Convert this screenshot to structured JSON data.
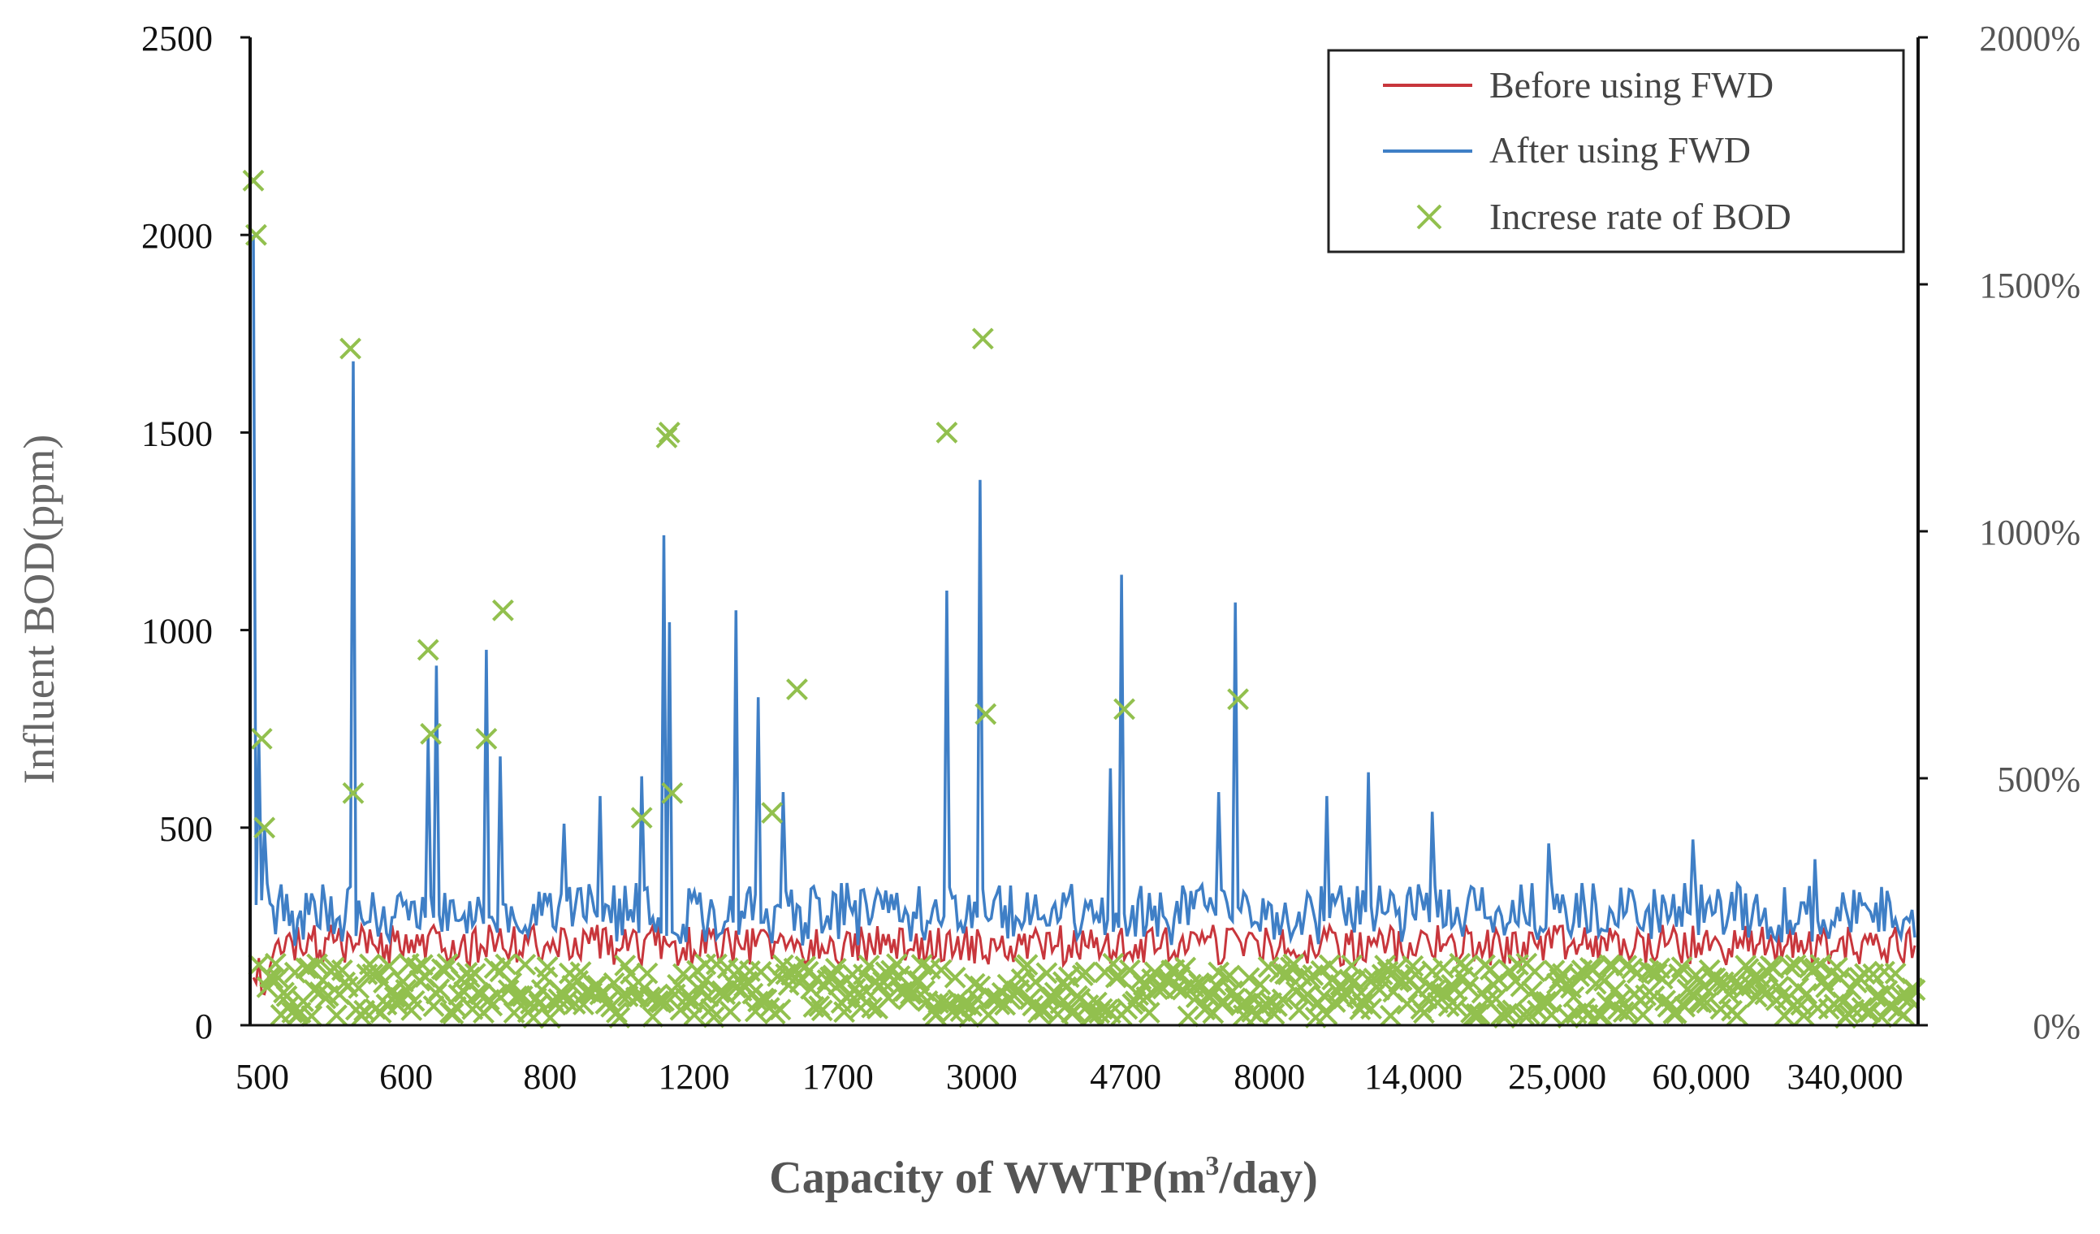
{
  "chart_data": {
    "type": "line",
    "title": "",
    "xlabel_main": "Capacity of WWTP(m",
    "xlabel_sup": "3",
    "xlabel_tail": "/day)",
    "ylabel": "Influent BOD(ppm)",
    "ylim": [
      0,
      2500
    ],
    "y2lim": [
      0,
      2000
    ],
    "yticks": [
      "0",
      "500",
      "1000",
      "1500",
      "2000",
      "2500"
    ],
    "y2ticks": [
      "0%",
      "500%",
      "1000%",
      "1500%",
      "2000%"
    ],
    "x_tick_labels": [
      "500",
      "600",
      "800",
      "1200",
      "1700",
      "3000",
      "4700",
      "8000",
      "14,000",
      "25,000",
      "60,000",
      "340,000"
    ],
    "n_points": 600,
    "legend_position": "top-right",
    "legend": {
      "before": "Before using FWD",
      "after": "After using FWD",
      "rate": "Increse rate of BOD"
    },
    "colors": {
      "before": "#c8363c",
      "after": "#3f7fc6",
      "rate": "#92c04e",
      "axis": "#111111"
    },
    "series": [
      {
        "name": "Before using FWD",
        "axis": "left",
        "baseline_range": [
          150,
          280
        ],
        "typical_value": 190
      },
      {
        "name": "After using FWD",
        "axis": "left",
        "baseline_range": [
          200,
          360
        ],
        "typical_value": 260,
        "peaks": [
          {
            "index": 0,
            "value": 2000
          },
          {
            "index": 2,
            "value": 720
          },
          {
            "index": 4,
            "value": 500
          },
          {
            "index": 36,
            "value": 1680
          },
          {
            "index": 63,
            "value": 730
          },
          {
            "index": 66,
            "value": 910
          },
          {
            "index": 84,
            "value": 950
          },
          {
            "index": 89,
            "value": 680
          },
          {
            "index": 112,
            "value": 510
          },
          {
            "index": 125,
            "value": 580
          },
          {
            "index": 140,
            "value": 630
          },
          {
            "index": 148,
            "value": 1240
          },
          {
            "index": 150,
            "value": 1020
          },
          {
            "index": 174,
            "value": 1050
          },
          {
            "index": 182,
            "value": 830
          },
          {
            "index": 191,
            "value": 590
          },
          {
            "index": 250,
            "value": 1100
          },
          {
            "index": 262,
            "value": 1380
          },
          {
            "index": 309,
            "value": 650
          },
          {
            "index": 313,
            "value": 1140
          },
          {
            "index": 348,
            "value": 590
          },
          {
            "index": 354,
            "value": 1070
          },
          {
            "index": 387,
            "value": 580
          },
          {
            "index": 402,
            "value": 640
          },
          {
            "index": 425,
            "value": 540
          },
          {
            "index": 467,
            "value": 460
          },
          {
            "index": 519,
            "value": 470
          },
          {
            "index": 563,
            "value": 420
          },
          {
            "index": 587,
            "value": 350
          }
        ]
      },
      {
        "name": "Increse rate of BOD",
        "axis": "right",
        "unit": "%",
        "typical_value": 60,
        "outliers": [
          {
            "index": 0,
            "value": 1710
          },
          {
            "index": 1,
            "value": 1600
          },
          {
            "index": 3,
            "value": 580
          },
          {
            "index": 4,
            "value": 400
          },
          {
            "index": 35,
            "value": 1370
          },
          {
            "index": 36,
            "value": 470
          },
          {
            "index": 63,
            "value": 760
          },
          {
            "index": 64,
            "value": 590
          },
          {
            "index": 84,
            "value": 580
          },
          {
            "index": 90,
            "value": 840
          },
          {
            "index": 140,
            "value": 420
          },
          {
            "index": 149,
            "value": 1190
          },
          {
            "index": 150,
            "value": 1200
          },
          {
            "index": 151,
            "value": 470
          },
          {
            "index": 187,
            "value": 430
          },
          {
            "index": 196,
            "value": 680
          },
          {
            "index": 250,
            "value": 1200
          },
          {
            "index": 263,
            "value": 1390
          },
          {
            "index": 264,
            "value": 630
          },
          {
            "index": 314,
            "value": 640
          },
          {
            "index": 355,
            "value": 660
          }
        ]
      }
    ]
  }
}
